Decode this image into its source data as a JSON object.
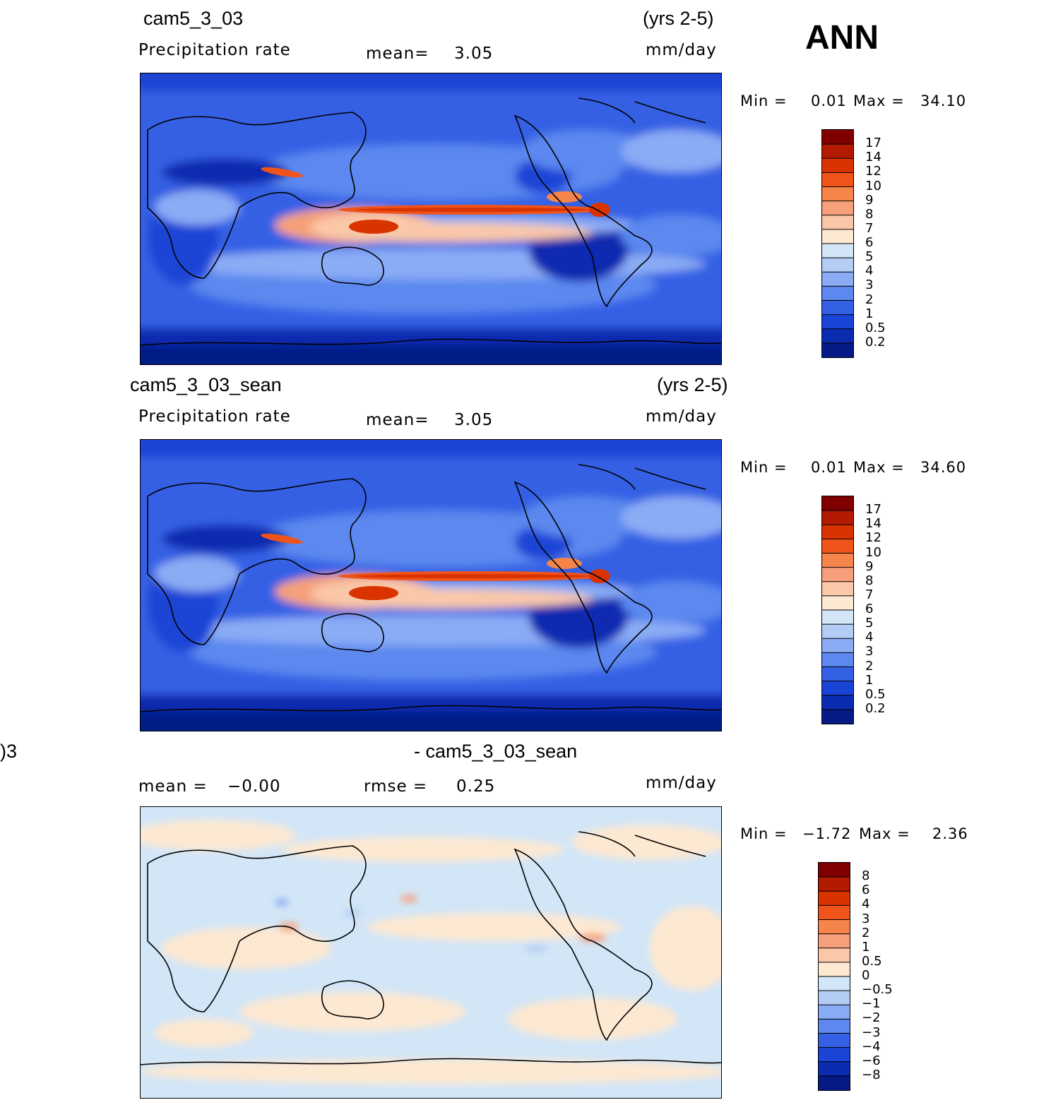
{
  "season": "ANN",
  "chart_data": [
    {
      "type": "heatmap",
      "title": "cam5_3_03",
      "years": "(yrs 2-5)",
      "variable": "Precipitation rate",
      "units": "mm/day",
      "mean_label": "mean=",
      "mean_value": "3.05",
      "min_label": "Min =",
      "min_value": "0.01",
      "max_label": "Max =",
      "max_value": "34.10",
      "colorbar_levels": [
        "17",
        "14",
        "12",
        "10",
        "9",
        "8",
        "7",
        "6",
        "5",
        "4",
        "3",
        "2",
        "1",
        "0.5",
        "0.2"
      ],
      "colorbar_colors": [
        "#800000",
        "#b31b00",
        "#d93300",
        "#f0541b",
        "#f5854a",
        "#f5a07a",
        "#fac8a8",
        "#fde8d2",
        "#d2e6f7",
        "#b4cdf5",
        "#8aacf5",
        "#5c88ef",
        "#3461e4",
        "#1a44d6",
        "#0b2cb0",
        "#051a85"
      ]
    },
    {
      "type": "heatmap",
      "title": "cam5_3_03_sean",
      "years": "(yrs 2-5)",
      "variable": "Precipitation rate",
      "units": "mm/day",
      "mean_label": "mean=",
      "mean_value": "3.05",
      "min_label": "Min =",
      "min_value": "0.01",
      "max_label": "Max =",
      "max_value": "34.60",
      "colorbar_levels": [
        "17",
        "14",
        "12",
        "10",
        "9",
        "8",
        "7",
        "6",
        "5",
        "4",
        "3",
        "2",
        "1",
        "0.5",
        "0.2"
      ],
      "colorbar_colors": [
        "#800000",
        "#b31b00",
        "#d93300",
        "#f0541b",
        "#f5854a",
        "#f5a07a",
        "#fac8a8",
        "#fde8d2",
        "#d2e6f7",
        "#b4cdf5",
        "#8aacf5",
        "#5c88ef",
        "#3461e4",
        "#1a44d6",
        "#0b2cb0",
        "#051a85"
      ]
    },
    {
      "type": "heatmap",
      "title_left": ")3",
      "title": "- cam5_3_03_sean",
      "units": "mm/day",
      "mean_label": "mean =",
      "mean_value": "−0.00",
      "rmse_label": "rmse =",
      "rmse_value": "0.25",
      "min_label": "Min =",
      "min_value": "−1.72",
      "max_label": "Max =",
      "max_value": "2.36",
      "colorbar_levels": [
        "8",
        "6",
        "4",
        "3",
        "2",
        "1",
        "0.5",
        "0",
        "−0.5",
        "−1",
        "−2",
        "−3",
        "−4",
        "−6",
        "−8"
      ],
      "colorbar_colors": [
        "#800000",
        "#b31b00",
        "#d93300",
        "#f0541b",
        "#f5854a",
        "#f5a07a",
        "#fac8a8",
        "#fde8d2",
        "#d2e6f7",
        "#b4cdf5",
        "#8aacf5",
        "#5c88ef",
        "#3461e4",
        "#1a44d6",
        "#0b2cb0",
        "#051a85"
      ]
    }
  ]
}
